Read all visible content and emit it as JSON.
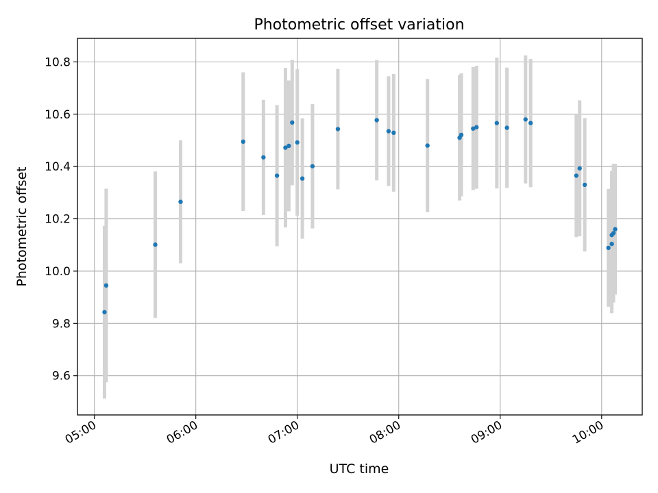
{
  "chart_data": {
    "type": "scatter",
    "title": "Photometric offset variation",
    "xlabel": "UTC time",
    "ylabel": "Photometric offset",
    "x_ticks": [
      "05:00",
      "06:00",
      "07:00",
      "08:00",
      "09:00",
      "10:00"
    ],
    "y_ticks": [
      "9.6",
      "9.8",
      "10.0",
      "10.2",
      "10.4",
      "10.6",
      "10.8"
    ],
    "xlim": [
      "04:50",
      "10:24"
    ],
    "ylim": [
      9.45,
      10.89
    ],
    "grid": true,
    "colors": {
      "marker": "#1f77b4",
      "errorbar": "#d3d3d3",
      "grid": "#b0b0b0"
    },
    "series": [
      {
        "points": [
          {
            "t": "05:06",
            "y": 9.843,
            "yerr": 0.33
          },
          {
            "t": "05:07",
            "y": 9.945,
            "yerr": 0.37
          },
          {
            "t": "05:36",
            "y": 10.101,
            "yerr": 0.28
          },
          {
            "t": "05:51",
            "y": 10.265,
            "yerr": 0.235
          },
          {
            "t": "06:28",
            "y": 10.495,
            "yerr": 0.265
          },
          {
            "t": "06:40",
            "y": 10.435,
            "yerr": 0.22
          },
          {
            "t": "06:48",
            "y": 10.365,
            "yerr": 0.27
          },
          {
            "t": "06:53",
            "y": 10.472,
            "yerr": 0.305
          },
          {
            "t": "06:55",
            "y": 10.479,
            "yerr": 0.25
          },
          {
            "t": "06:57",
            "y": 10.568,
            "yerr": 0.24
          },
          {
            "t": "07:00",
            "y": 10.492,
            "yerr": 0.28
          },
          {
            "t": "07:03",
            "y": 10.354,
            "yerr": 0.23
          },
          {
            "t": "07:09",
            "y": 10.401,
            "yerr": 0.238
          },
          {
            "t": "07:24",
            "y": 10.543,
            "yerr": 0.23
          },
          {
            "t": "07:47",
            "y": 10.577,
            "yerr": 0.23
          },
          {
            "t": "07:54",
            "y": 10.535,
            "yerr": 0.21
          },
          {
            "t": "07:57",
            "y": 10.529,
            "yerr": 0.225
          },
          {
            "t": "08:17",
            "y": 10.48,
            "yerr": 0.255
          },
          {
            "t": "08:36",
            "y": 10.51,
            "yerr": 0.24
          },
          {
            "t": "08:37",
            "y": 10.521,
            "yerr": 0.235
          },
          {
            "t": "08:44",
            "y": 10.545,
            "yerr": 0.235
          },
          {
            "t": "08:46",
            "y": 10.55,
            "yerr": 0.235
          },
          {
            "t": "08:58",
            "y": 10.566,
            "yerr": 0.25
          },
          {
            "t": "09:04",
            "y": 10.548,
            "yerr": 0.23
          },
          {
            "t": "09:15",
            "y": 10.58,
            "yerr": 0.245
          },
          {
            "t": "09:18",
            "y": 10.566,
            "yerr": 0.245
          },
          {
            "t": "09:45",
            "y": 10.365,
            "yerr": 0.235
          },
          {
            "t": "09:47",
            "y": 10.393,
            "yerr": 0.26
          },
          {
            "t": "09:50",
            "y": 10.33,
            "yerr": 0.255
          },
          {
            "t": "10:04",
            "y": 10.089,
            "yerr": 0.225
          },
          {
            "t": "10:06",
            "y": 10.138,
            "yerr": 0.245
          },
          {
            "t": "10:06",
            "y": 10.104,
            "yerr": 0.265
          },
          {
            "t": "10:07",
            "y": 10.145,
            "yerr": 0.265
          },
          {
            "t": "10:08",
            "y": 10.16,
            "yerr": 0.25
          }
        ]
      }
    ]
  }
}
